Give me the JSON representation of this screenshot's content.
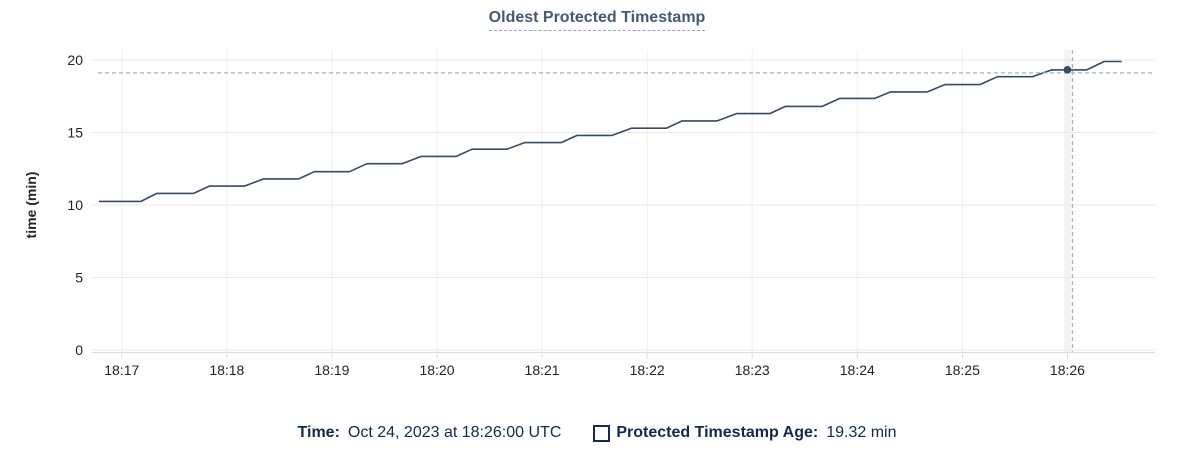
{
  "chart_data": {
    "type": "line",
    "title": "Oldest Protected Timestamp",
    "ylabel": "time (min)",
    "xlabel": "",
    "grid": true,
    "legend_position": "bottom",
    "ylim": [
      0,
      20
    ],
    "y_ticks": [
      0,
      5,
      10,
      15,
      20
    ],
    "x_domain": [
      "18:16:43",
      "18:26:50"
    ],
    "x_ticks": [
      {
        "t": "18:17:00",
        "label": "18:17"
      },
      {
        "t": "18:18:00",
        "label": "18:18"
      },
      {
        "t": "18:19:00",
        "label": "18:19"
      },
      {
        "t": "18:20:00",
        "label": "18:20"
      },
      {
        "t": "18:21:00",
        "label": "18:21"
      },
      {
        "t": "18:22:00",
        "label": "18:22"
      },
      {
        "t": "18:23:00",
        "label": "18:23"
      },
      {
        "t": "18:24:00",
        "label": "18:24"
      },
      {
        "t": "18:25:00",
        "label": "18:25"
      },
      {
        "t": "18:26:00",
        "label": "18:26"
      }
    ],
    "series": [
      {
        "name": "Protected Timestamp Age",
        "unit": "min",
        "points": [
          [
            "18:16:47",
            10.25
          ],
          [
            "18:17:11",
            10.25
          ],
          [
            "18:17:20",
            10.8
          ],
          [
            "18:17:41",
            10.8
          ],
          [
            "18:17:50",
            11.3
          ],
          [
            "18:18:10",
            11.3
          ],
          [
            "18:18:21",
            11.8
          ],
          [
            "18:18:41",
            11.8
          ],
          [
            "18:18:50",
            12.3
          ],
          [
            "18:19:10",
            12.3
          ],
          [
            "18:19:20",
            12.85
          ],
          [
            "18:19:40",
            12.85
          ],
          [
            "18:19:51",
            13.35
          ],
          [
            "18:20:11",
            13.35
          ],
          [
            "18:20:20",
            13.85
          ],
          [
            "18:20:40",
            13.85
          ],
          [
            "18:20:50",
            14.3
          ],
          [
            "18:21:11",
            14.3
          ],
          [
            "18:21:20",
            14.8
          ],
          [
            "18:21:40",
            14.8
          ],
          [
            "18:21:51",
            15.3
          ],
          [
            "18:22:11",
            15.3
          ],
          [
            "18:22:20",
            15.8
          ],
          [
            "18:22:40",
            15.8
          ],
          [
            "18:22:51",
            16.3
          ],
          [
            "18:23:10",
            16.3
          ],
          [
            "18:23:19",
            16.8
          ],
          [
            "18:23:40",
            16.8
          ],
          [
            "18:23:50",
            17.35
          ],
          [
            "18:24:10",
            17.35
          ],
          [
            "18:24:19",
            17.8
          ],
          [
            "18:24:40",
            17.8
          ],
          [
            "18:24:50",
            18.3
          ],
          [
            "18:25:10",
            18.3
          ],
          [
            "18:25:20",
            18.85
          ],
          [
            "18:25:40",
            18.85
          ],
          [
            "18:25:51",
            19.32
          ],
          [
            "18:26:11",
            19.32
          ],
          [
            "18:26:21",
            19.9
          ],
          [
            "18:26:31",
            19.9
          ]
        ]
      }
    ],
    "hover": {
      "time": "18:26:00",
      "value": 19.32,
      "value_label": "19.32 min",
      "time_label": "Oct 24, 2023 at 18:26:00 UTC"
    },
    "colors": {
      "line": "#394a63",
      "dot": "#394a63",
      "crosshair": "#9fb4bf",
      "grid_h": "#e9e9e9",
      "grid_v": "#efefef",
      "axis_line": "#dcdcdc",
      "hover_band": "#ececec",
      "axis_text": "#242424",
      "title": "#475872",
      "legend_text": "#14294d"
    }
  },
  "legend": {
    "time_label": "Time:",
    "time_value": "Oct 24, 2023 at 18:26:00 UTC",
    "series_label": "Protected Timestamp Age:",
    "series_value": "19.32 min"
  }
}
